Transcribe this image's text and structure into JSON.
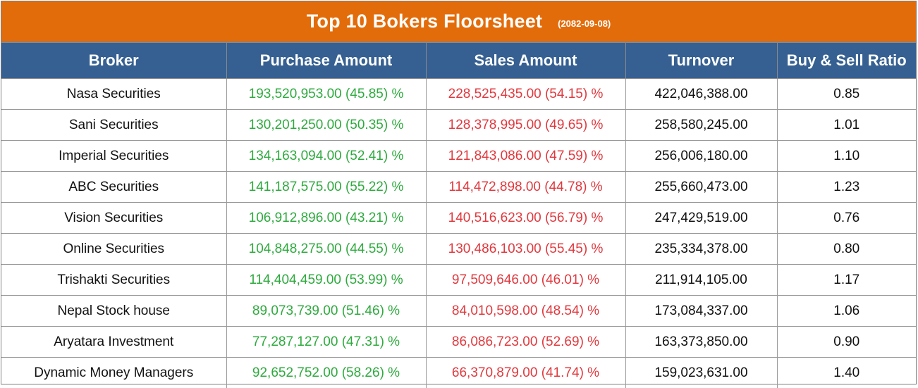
{
  "title": {
    "main": "Top 10 Bokers Floorsheet",
    "date": "(2082-09-08)"
  },
  "colors": {
    "title_bg": "#e36c0a",
    "header_bg": "#366092",
    "buy_text": "#2eaa3e",
    "sell_text": "#e0393e"
  },
  "columns": [
    "Broker",
    "Purchase Amount",
    "Sales Amount",
    "Turnover",
    "Buy & Sell Ratio"
  ],
  "rows": [
    {
      "broker": "Nasa Securities",
      "purchase": "193,520,953.00 (45.85) %",
      "sales": "228,525,435.00 (54.15) %",
      "turnover": "422,046,388.00",
      "ratio": "0.85"
    },
    {
      "broker": "Sani Securities",
      "purchase": "130,201,250.00 (50.35) %",
      "sales": "128,378,995.00 (49.65) %",
      "turnover": "258,580,245.00",
      "ratio": "1.01"
    },
    {
      "broker": "Imperial Securities",
      "purchase": "134,163,094.00 (52.41) %",
      "sales": "121,843,086.00 (47.59) %",
      "turnover": "256,006,180.00",
      "ratio": "1.10"
    },
    {
      "broker": "ABC Securities",
      "purchase": "141,187,575.00 (55.22) %",
      "sales": "114,472,898.00 (44.78) %",
      "turnover": "255,660,473.00",
      "ratio": "1.23"
    },
    {
      "broker": "Vision Securities",
      "purchase": "106,912,896.00 (43.21) %",
      "sales": "140,516,623.00 (56.79) %",
      "turnover": "247,429,519.00",
      "ratio": "0.76"
    },
    {
      "broker": "Online Securities",
      "purchase": "104,848,275.00 (44.55) %",
      "sales": "130,486,103.00 (55.45) %",
      "turnover": "235,334,378.00",
      "ratio": "0.80"
    },
    {
      "broker": "Trishakti Securities",
      "purchase": "114,404,459.00 (53.99) %",
      "sales": "97,509,646.00 (46.01) %",
      "turnover": "211,914,105.00",
      "ratio": "1.17"
    },
    {
      "broker": "Nepal Stock house",
      "purchase": "89,073,739.00 (51.46) %",
      "sales": "84,010,598.00 (48.54) %",
      "turnover": "173,084,337.00",
      "ratio": "1.06"
    },
    {
      "broker": "Aryatara Investment",
      "purchase": "77,287,127.00 (47.31) %",
      "sales": "86,086,723.00 (52.69) %",
      "turnover": "163,373,850.00",
      "ratio": "0.90"
    },
    {
      "broker": "Dynamic Money Managers",
      "purchase": "92,652,752.00 (58.26) %",
      "sales": "66,370,879.00 (41.74) %",
      "turnover": "159,023,631.00",
      "ratio": "1.40"
    }
  ]
}
